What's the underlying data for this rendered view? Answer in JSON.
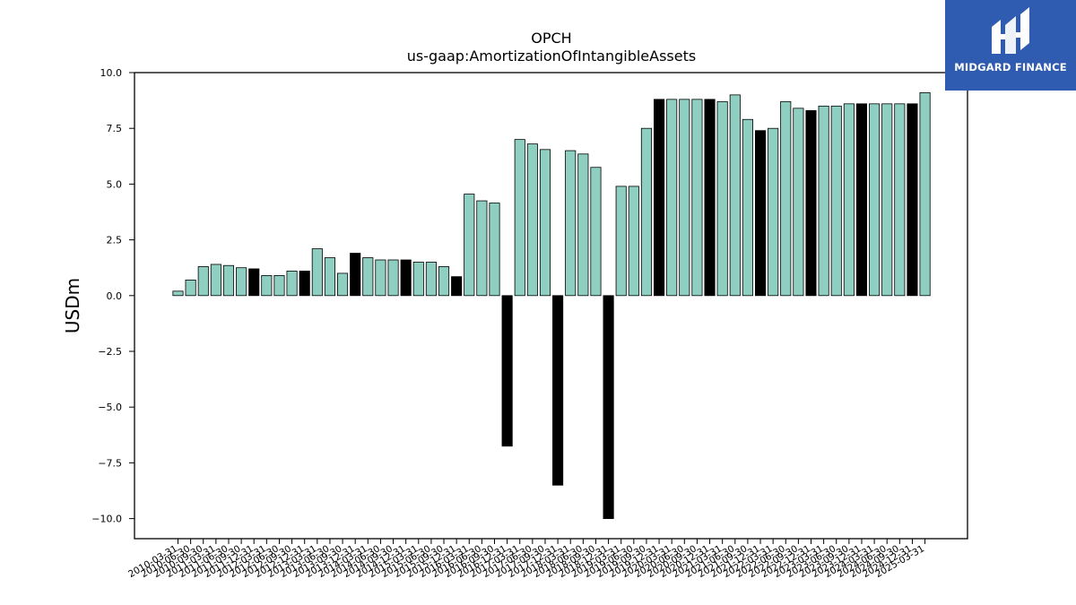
{
  "chart_data": {
    "type": "bar",
    "title": "OPCH",
    "subtitle": "us-gaap:AmortizationOfIntangibleAssets",
    "xlabel": "",
    "ylabel": "USDm",
    "ylim": [
      -10.9,
      10.0
    ],
    "yticks": [
      10.0,
      7.5,
      5.0,
      2.5,
      0.0,
      -2.5,
      -5.0,
      -7.5,
      -10.0
    ],
    "ytick_labels": [
      "10.0",
      "7.5",
      "5.0",
      "2.5",
      "0.0",
      "−2.5",
      "−5.0",
      "−7.5",
      "−10.0"
    ],
    "grid": false,
    "colors": {
      "quarterly": "#8ecfc2",
      "derived": "#000000",
      "edge": "#000000"
    },
    "categories": [
      "2010-03-31",
      "2010-06-30",
      "2010-09-30",
      "2011-03-31",
      "2011-06-30",
      "2011-09-30",
      "2011-12-31",
      "2012-03-31",
      "2012-06-30",
      "2012-09-30",
      "2012-12-31",
      "2013-03-31",
      "2013-06-30",
      "2013-09-30",
      "2013-12-31",
      "2014-03-31",
      "2014-06-30",
      "2014-09-30",
      "2014-12-31",
      "2015-03-31",
      "2015-06-30",
      "2015-09-30",
      "2015-12-31",
      "2016-03-31",
      "2016-06-30",
      "2016-09-30",
      "2016-12-31",
      "2017-03-31",
      "2017-06-30",
      "2017-09-30",
      "2017-12-31",
      "2018-03-31",
      "2018-06-30",
      "2018-09-30",
      "2018-12-31",
      "2019-03-31",
      "2019-06-30",
      "2019-09-30",
      "2019-12-31",
      "2020-03-31",
      "2020-06-30",
      "2020-09-30",
      "2020-12-31",
      "2021-03-31",
      "2021-06-30",
      "2021-09-30",
      "2021-12-31",
      "2022-03-31",
      "2022-06-30",
      "2022-09-30",
      "2022-12-31",
      "2023-03-31",
      "2023-06-30",
      "2023-09-30",
      "2023-12-31",
      "2024-03-31",
      "2024-06-30",
      "2024-09-30",
      "2024-12-31",
      "2025-03-31"
    ],
    "values": [
      0.2,
      0.7,
      1.3,
      1.4,
      1.35,
      1.25,
      1.2,
      0.9,
      0.9,
      1.1,
      1.1,
      2.1,
      1.7,
      1.0,
      1.9,
      1.7,
      1.6,
      1.6,
      1.6,
      1.5,
      1.5,
      1.3,
      0.85,
      4.55,
      4.25,
      4.15,
      -6.75,
      7.0,
      6.8,
      6.55,
      -8.5,
      6.5,
      6.35,
      5.75,
      -10.0,
      4.9,
      4.9,
      7.5,
      8.8,
      8.8,
      8.8,
      8.8,
      8.8,
      8.7,
      9.0,
      7.9,
      7.4,
      7.5,
      8.7,
      8.4,
      8.3,
      8.5,
      8.5,
      8.6,
      8.6,
      8.6,
      8.6,
      8.6,
      8.6,
      9.1
    ],
    "bar_kind": [
      "q",
      "q",
      "q",
      "q",
      "q",
      "q",
      "d",
      "q",
      "q",
      "q",
      "d",
      "q",
      "q",
      "q",
      "d",
      "q",
      "q",
      "q",
      "d",
      "q",
      "q",
      "q",
      "d",
      "q",
      "q",
      "q",
      "d",
      "q",
      "q",
      "q",
      "d",
      "q",
      "q",
      "q",
      "d",
      "q",
      "q",
      "q",
      "d",
      "q",
      "q",
      "q",
      "d",
      "q",
      "q",
      "q",
      "d",
      "q",
      "q",
      "q",
      "d",
      "q",
      "q",
      "q",
      "d",
      "q",
      "q",
      "q",
      "d",
      "q"
    ]
  },
  "logo": {
    "text": "MIDGARD FINANCE"
  }
}
